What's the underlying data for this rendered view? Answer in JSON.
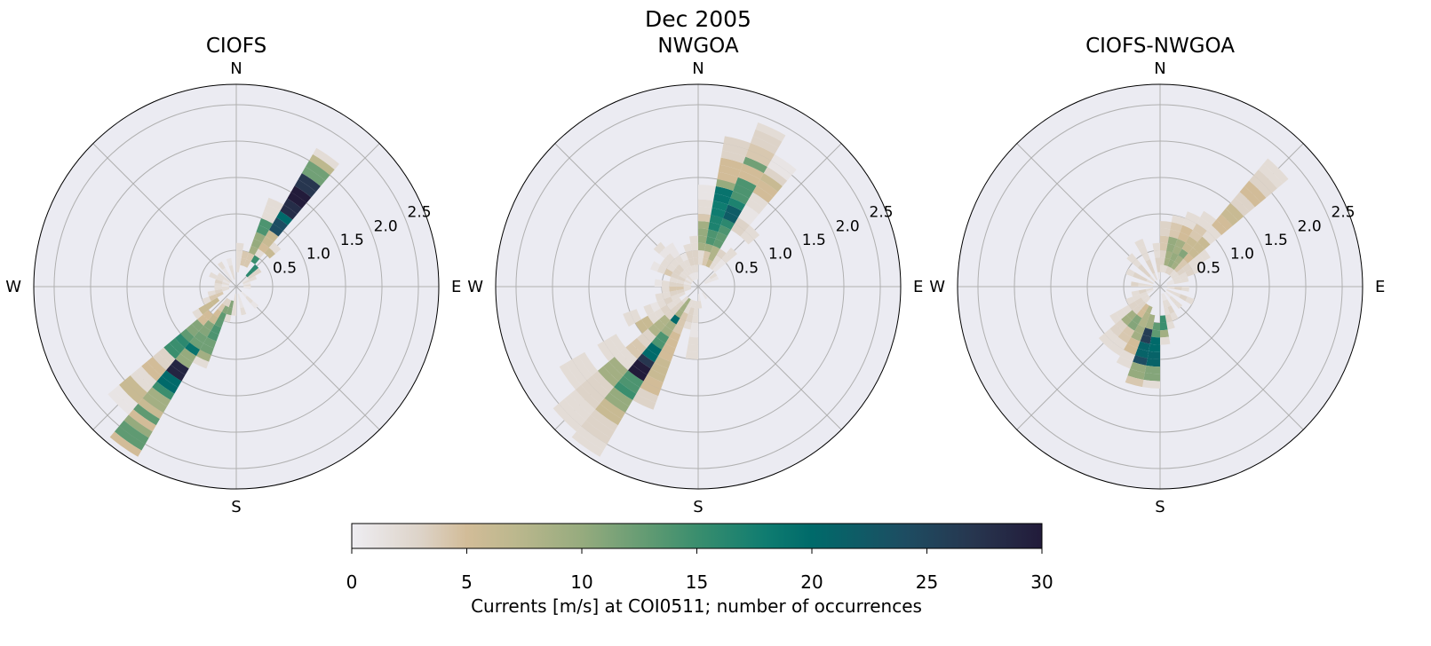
{
  "suptitle": "Dec 2005",
  "colorbar": {
    "label": "Currents [m/s] at COI0511; number of occurrences",
    "vmin": 0,
    "vmax": 30,
    "ticks": [
      "0",
      "5",
      "10",
      "15",
      "20",
      "25",
      "30"
    ],
    "colormap_stops": [
      [
        0,
        "#eeedf2"
      ],
      [
        3,
        "#ddd3c8"
      ],
      [
        5,
        "#d2bc98"
      ],
      [
        7,
        "#bdb88e"
      ],
      [
        10,
        "#96ab7e"
      ],
      [
        13,
        "#5f9a72"
      ],
      [
        15,
        "#3a8e6e"
      ],
      [
        18,
        "#0f7c70"
      ],
      [
        20,
        "#006a6a"
      ],
      [
        24,
        "#1d4d62"
      ],
      [
        27,
        "#27364f"
      ],
      [
        30,
        "#221b3a"
      ]
    ]
  },
  "chart_data": [
    {
      "type": "bar",
      "projection": "polar",
      "title": "CIOFS",
      "direction_labels": [
        "N",
        "E",
        "S",
        "W"
      ],
      "r_tick_labels": [
        "0.5",
        "1.0",
        "1.5",
        "2.0",
        "2.5"
      ],
      "r_ticks": [
        0.5,
        1.0,
        1.5,
        2.0,
        2.5
      ],
      "rlim": [
        0,
        2.78
      ],
      "direction_bin_width_deg": 10,
      "speed_bin_width": 0.1,
      "grid": true,
      "sectors": [
        {
          "dir": 35,
          "counts": [
            0,
            0,
            0,
            0,
            15,
            2,
            5,
            6,
            6,
            24,
            24,
            20,
            28,
            28,
            30,
            30,
            27,
            27,
            12,
            12,
            7,
            2
          ]
        },
        {
          "dir": 25,
          "counts": [
            0,
            0,
            0,
            4,
            4,
            9,
            10,
            10,
            14,
            14,
            2,
            2,
            2
          ]
        },
        {
          "dir": 45,
          "counts": [
            0,
            0,
            16,
            16,
            0,
            0,
            6,
            2
          ]
        },
        {
          "dir": 15,
          "counts": [
            0,
            0,
            0,
            4,
            4
          ]
        },
        {
          "dir": 5,
          "counts": [
            0,
            0,
            2,
            2,
            2,
            2
          ]
        },
        {
          "dir": 55,
          "counts": [
            0,
            1,
            3,
            3
          ]
        },
        {
          "dir": 65,
          "counts": [
            0,
            2,
            2
          ]
        },
        {
          "dir": 75,
          "counts": [
            0,
            1
          ]
        },
        {
          "dir": 85,
          "counts": [
            0,
            2
          ]
        },
        {
          "dir": 95,
          "counts": [
            0,
            1
          ]
        },
        {
          "dir": 135,
          "counts": [
            0,
            1,
            2,
            1
          ]
        },
        {
          "dir": 165,
          "counts": [
            0,
            1,
            1,
            2
          ]
        },
        {
          "dir": 185,
          "counts": [
            0,
            2,
            2,
            2
          ]
        },
        {
          "dir": 195,
          "counts": [
            0,
            0,
            11,
            11,
            2
          ]
        },
        {
          "dir": 205,
          "counts": [
            0,
            0,
            3,
            11,
            13,
            13,
            14,
            14,
            12,
            12,
            9,
            2
          ]
        },
        {
          "dir": 215,
          "counts": [
            0,
            0,
            3,
            4,
            5,
            6,
            11,
            11,
            12,
            12,
            19,
            10,
            10,
            29,
            29,
            20,
            20,
            15,
            9,
            9,
            6,
            13,
            5,
            10,
            13,
            13,
            5
          ]
        },
        {
          "dir": 225,
          "counts": [
            0,
            0,
            0,
            0,
            0,
            5,
            5,
            11,
            11,
            13,
            16,
            15,
            15,
            3,
            3,
            5,
            5,
            2,
            2,
            6,
            6,
            1,
            1
          ]
        },
        {
          "dir": 235,
          "counts": [
            0,
            0,
            0,
            6,
            6,
            6,
            2
          ]
        },
        {
          "dir": 245,
          "counts": [
            0,
            0,
            4,
            4,
            2
          ]
        },
        {
          "dir": 255,
          "counts": [
            0,
            2,
            3,
            2
          ]
        },
        {
          "dir": 265,
          "counts": [
            0,
            2,
            2
          ]
        },
        {
          "dir": 275,
          "counts": [
            0,
            1,
            2
          ]
        },
        {
          "dir": 285,
          "counts": [
            0,
            2,
            3
          ]
        },
        {
          "dir": 295,
          "counts": [
            0,
            1,
            2,
            2
          ]
        },
        {
          "dir": 305,
          "counts": [
            0,
            2,
            2
          ]
        },
        {
          "dir": 325,
          "counts": [
            0,
            1,
            1,
            2
          ]
        },
        {
          "dir": 345,
          "counts": [
            0,
            2,
            2,
            1
          ]
        }
      ]
    },
    {
      "type": "bar",
      "projection": "polar",
      "title": "NWGOA",
      "direction_labels": [
        "N",
        "E",
        "S",
        "W"
      ],
      "r_tick_labels": [
        "0.5",
        "1.0",
        "1.5",
        "2.0",
        "2.5"
      ],
      "r_ticks": [
        0.5,
        1.0,
        1.5,
        2.0,
        2.5
      ],
      "rlim": [
        0,
        2.78
      ],
      "direction_bin_width_deg": 10,
      "speed_bin_width": 0.1,
      "grid": true,
      "sectors": [
        {
          "dir": 5,
          "counts": [
            0,
            0,
            0,
            2,
            2,
            9,
            10,
            10,
            9,
            4,
            2,
            2,
            1,
            1
          ]
        },
        {
          "dir": 15,
          "counts": [
            0,
            0,
            0,
            4,
            4,
            9,
            14,
            14,
            17,
            17,
            18,
            18,
            19,
            19,
            10,
            5,
            5,
            5,
            3,
            3,
            3
          ]
        },
        {
          "dir": 25,
          "counts": [
            0,
            0,
            0,
            6,
            8,
            8,
            13,
            13,
            14,
            16,
            22,
            22,
            17,
            14,
            14,
            14,
            5,
            5,
            12,
            4,
            4,
            3,
            3,
            2
          ]
        },
        {
          "dir": 35,
          "counts": [
            0,
            0,
            0,
            2,
            2,
            3,
            0,
            0,
            0,
            3,
            3,
            1,
            1,
            2,
            2,
            5,
            5,
            6,
            3,
            1,
            1
          ]
        },
        {
          "dir": 45,
          "counts": [
            0,
            0,
            0,
            1,
            1,
            2,
            2,
            0,
            0,
            2,
            2
          ]
        },
        {
          "dir": 55,
          "counts": [
            0,
            1,
            2
          ]
        },
        {
          "dir": 65,
          "counts": [
            0,
            1,
            1
          ]
        },
        {
          "dir": 145,
          "counts": [
            0,
            1
          ]
        },
        {
          "dir": 175,
          "counts": [
            0,
            1,
            2
          ]
        },
        {
          "dir": 185,
          "counts": [
            0,
            0,
            2,
            2,
            2,
            1,
            1,
            2,
            2,
            2
          ]
        },
        {
          "dir": 195,
          "counts": [
            0,
            0,
            2,
            3,
            3,
            2
          ]
        },
        {
          "dir": 205,
          "counts": [
            0,
            0,
            2,
            2,
            4,
            4,
            4,
            5,
            5,
            5,
            5,
            6,
            6,
            6,
            5,
            5,
            3,
            3
          ]
        },
        {
          "dir": 215,
          "counts": [
            0,
            0,
            9,
            9,
            9,
            20,
            9,
            9,
            14,
            14,
            20,
            20,
            27,
            30,
            30,
            14,
            14,
            15,
            10,
            10,
            6,
            6,
            3,
            3,
            3,
            2,
            2
          ]
        },
        {
          "dir": 225,
          "counts": [
            0,
            0,
            2,
            3,
            3,
            3,
            8,
            8,
            8,
            3,
            3,
            4,
            4,
            2,
            2,
            9,
            9,
            9,
            3,
            3,
            3,
            3,
            2,
            2,
            2,
            2
          ]
        },
        {
          "dir": 235,
          "counts": [
            0,
            0,
            0,
            2,
            2,
            3,
            2,
            2,
            6,
            6,
            0,
            0,
            0,
            2,
            2,
            2,
            0,
            0,
            2,
            2,
            2,
            2
          ]
        },
        {
          "dir": 245,
          "counts": [
            0,
            0,
            2,
            2,
            3,
            2,
            1,
            2,
            0,
            2,
            2
          ]
        },
        {
          "dir": 255,
          "counts": [
            0,
            2,
            3,
            3,
            2,
            2
          ]
        },
        {
          "dir": 265,
          "counts": [
            0,
            2,
            4,
            4,
            2
          ]
        },
        {
          "dir": 275,
          "counts": [
            0,
            2,
            3,
            3,
            2,
            1
          ]
        },
        {
          "dir": 285,
          "counts": [
            0,
            1,
            2,
            2
          ]
        },
        {
          "dir": 295,
          "counts": [
            0,
            2,
            3,
            3,
            4,
            2,
            1
          ]
        },
        {
          "dir": 305,
          "counts": [
            0,
            1,
            2,
            3,
            2,
            2
          ]
        },
        {
          "dir": 315,
          "counts": [
            0,
            2,
            2,
            3,
            2,
            2,
            1,
            2
          ]
        },
        {
          "dir": 325,
          "counts": [
            0,
            1,
            2,
            2,
            2,
            1,
            1
          ]
        },
        {
          "dir": 335,
          "counts": [
            0,
            1,
            2,
            2,
            1
          ]
        },
        {
          "dir": 345,
          "counts": [
            0,
            1,
            2,
            3,
            3,
            2
          ]
        },
        {
          "dir": 355,
          "counts": [
            0,
            1,
            2,
            3,
            3,
            2,
            2
          ]
        }
      ]
    },
    {
      "type": "bar",
      "projection": "polar",
      "title": "CIOFS-NWGOA",
      "direction_labels": [
        "N",
        "E",
        "S",
        "W"
      ],
      "r_tick_labels": [
        "0.5",
        "1.0",
        "1.5",
        "2.0",
        "2.5"
      ],
      "r_ticks": [
        0.5,
        1.0,
        1.5,
        2.0,
        2.5
      ],
      "rlim": [
        0,
        2.78
      ],
      "direction_bin_width_deg": 10,
      "speed_bin_width": 0.1,
      "grid": true,
      "sectors": [
        {
          "dir": 5,
          "counts": [
            0,
            0,
            2,
            3,
            3,
            4,
            4,
            3,
            3
          ]
        },
        {
          "dir": 15,
          "counts": [
            0,
            0,
            2,
            9,
            9,
            10,
            10,
            4,
            4,
            2
          ]
        },
        {
          "dir": 25,
          "counts": [
            0,
            0,
            3,
            10,
            10,
            9,
            9,
            5,
            5,
            2,
            2
          ]
        },
        {
          "dir": 35,
          "counts": [
            0,
            0,
            3,
            9,
            9,
            11,
            6,
            6,
            4,
            4,
            2,
            2
          ]
        },
        {
          "dir": 45,
          "counts": [
            0,
            0,
            2,
            4,
            4,
            5,
            6,
            6,
            6,
            2,
            2,
            5,
            5,
            6,
            6,
            3,
            3,
            5,
            5,
            3,
            3,
            2,
            2
          ]
        },
        {
          "dir": 55,
          "counts": [
            0,
            0,
            2,
            3,
            3,
            2,
            2,
            2
          ]
        },
        {
          "dir": 65,
          "counts": [
            0,
            1,
            2,
            2,
            3,
            2
          ]
        },
        {
          "dir": 75,
          "counts": [
            0,
            1,
            2,
            2
          ]
        },
        {
          "dir": 95,
          "counts": [
            0,
            2,
            3,
            2
          ]
        },
        {
          "dir": 115,
          "counts": [
            0,
            2,
            2,
            3,
            2
          ]
        },
        {
          "dir": 135,
          "counts": [
            0,
            1,
            2,
            2
          ]
        },
        {
          "dir": 155,
          "counts": [
            0,
            1,
            2,
            3,
            2
          ]
        },
        {
          "dir": 165,
          "counts": [
            0,
            1,
            2,
            2,
            3,
            2
          ]
        },
        {
          "dir": 175,
          "counts": [
            0,
            0,
            0,
            0,
            15,
            15,
            9,
            2
          ]
        },
        {
          "dir": 185,
          "counts": [
            0,
            0,
            0,
            0,
            0,
            13,
            13,
            20,
            20,
            21,
            21,
            11,
            11,
            2
          ]
        },
        {
          "dir": 195,
          "counts": [
            0,
            0,
            0,
            0,
            9,
            9,
            26,
            26,
            21,
            21,
            24,
            10,
            10,
            4
          ]
        },
        {
          "dir": 205,
          "counts": [
            0,
            0,
            0,
            8,
            8,
            8,
            9,
            9,
            5,
            5,
            2,
            2
          ]
        },
        {
          "dir": 215,
          "counts": [
            0,
            0,
            0,
            5,
            5,
            11,
            11,
            4,
            4,
            2,
            2
          ]
        },
        {
          "dir": 225,
          "counts": [
            0,
            0,
            2,
            3,
            3,
            9,
            9,
            3,
            3,
            2,
            2
          ]
        },
        {
          "dir": 235,
          "counts": [
            0,
            0,
            2,
            3,
            3,
            2,
            2,
            2
          ]
        },
        {
          "dir": 245,
          "counts": [
            0,
            1,
            2,
            2,
            2
          ]
        },
        {
          "dir": 255,
          "counts": [
            0,
            2,
            3,
            2
          ]
        },
        {
          "dir": 275,
          "counts": [
            0,
            2,
            2,
            3
          ]
        },
        {
          "dir": 295,
          "counts": [
            0,
            2,
            3,
            3,
            2
          ]
        },
        {
          "dir": 315,
          "counts": [
            0,
            2,
            3,
            3,
            2,
            2
          ]
        },
        {
          "dir": 335,
          "counts": [
            0,
            2,
            3,
            3,
            2,
            2,
            2
          ]
        },
        {
          "dir": 355,
          "counts": [
            0,
            1,
            3,
            3,
            2,
            2
          ]
        }
      ]
    }
  ]
}
